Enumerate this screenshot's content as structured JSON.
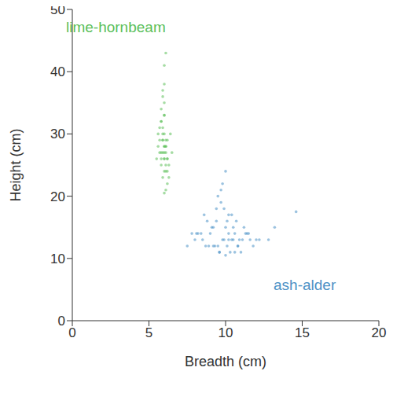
{
  "chart_data": {
    "type": "scatter",
    "x_label": "Breadth (cm)",
    "y_label": "Height (cm)",
    "xlim": [
      0,
      20
    ],
    "xticks": [
      0,
      5,
      10,
      15,
      20
    ],
    "ylim": [
      0,
      50
    ],
    "yticks": [
      0,
      10,
      20,
      30,
      40,
      50
    ],
    "grid": false,
    "series": [
      {
        "name": "lime-hornbeam",
        "color": "#5cbf5a",
        "marker": "circle",
        "x": [
          5.9,
          6.1,
          5.8,
          6.0,
          6.2,
          5.7,
          6.0,
          5.9,
          6.1,
          6.3,
          5.6,
          6.0,
          5.8,
          6.2,
          6.0,
          5.9,
          6.1,
          5.7,
          6.4,
          5.5,
          6.0,
          6.1,
          5.8,
          6.0,
          5.9,
          6.2,
          6.0,
          5.8,
          6.1,
          5.9,
          6.0,
          6.3,
          5.7,
          6.0,
          5.9,
          6.1,
          6.0,
          5.8,
          6.2,
          6.0,
          5.6,
          6.5,
          5.9,
          6.1,
          6.0,
          5.8,
          6.2,
          5.9,
          6.0,
          6.1
        ],
        "y": [
          27,
          28,
          25,
          30,
          26,
          29,
          24,
          31,
          27,
          23,
          28,
          33,
          26,
          22,
          35,
          29,
          25,
          27,
          30,
          26,
          38,
          21,
          32,
          28,
          36,
          24,
          27,
          34,
          29,
          30,
          26,
          25,
          31,
          41,
          23,
          28,
          33,
          27,
          29,
          26,
          30,
          27,
          37,
          24,
          28,
          32,
          26,
          29,
          20.5,
          43
        ]
      },
      {
        "name": "ash-alder",
        "color": "#4a91c6",
        "marker": "circle",
        "x": [
          8.5,
          9.0,
          9.5,
          10.0,
          10.5,
          11.0,
          11.5,
          8.8,
          9.2,
          9.8,
          10.2,
          10.8,
          11.2,
          8.2,
          9.6,
          10.4,
          9.9,
          10.1,
          9.4,
          10.6,
          8.0,
          11.8,
          9.7,
          10.3,
          9.1,
          10.9,
          8.6,
          11.4,
          9.3,
          10.7,
          7.8,
          12.2,
          9.5,
          10.0,
          10.5,
          8.9,
          11.1,
          9.8,
          10.2,
          12.8,
          7.5,
          13.2,
          9.6,
          10.4,
          8.4,
          11.6,
          10.0,
          9.2,
          10.8,
          9.9,
          10.1,
          8.7,
          11.3,
          10.6,
          9.4,
          12.0,
          8.1,
          10.2,
          9.7,
          14.6
        ],
        "y": [
          13,
          14,
          12,
          15,
          13,
          11,
          14,
          16,
          12,
          13,
          17,
          12,
          15,
          14,
          11,
          13,
          18,
          12,
          16,
          14,
          13,
          12,
          19,
          11,
          15,
          13,
          17,
          14,
          12,
          16,
          14,
          13,
          20,
          10.5,
          15,
          12,
          13,
          22,
          14,
          13,
          12,
          15,
          11,
          17,
          14,
          13,
          24,
          15,
          12,
          13,
          16,
          12,
          14,
          11,
          18,
          13,
          14,
          13,
          21,
          17.5
        ]
      }
    ]
  }
}
